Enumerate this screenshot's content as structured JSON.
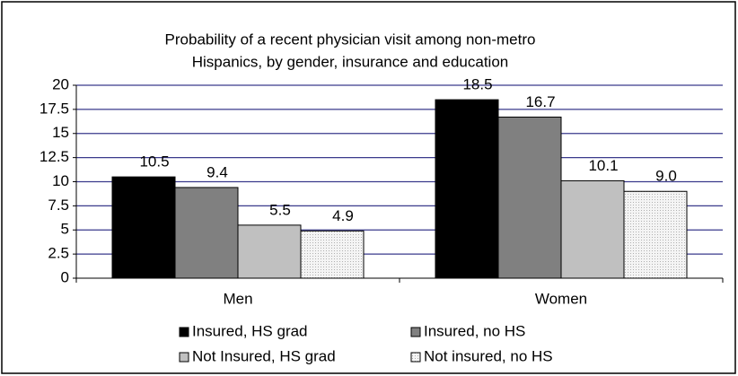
{
  "chart_data": {
    "type": "bar",
    "title": [
      "Probability of a recent physician visit among non-metro",
      "Hispanics, by gender, insurance and education"
    ],
    "categories": [
      "Men",
      "Women"
    ],
    "series": [
      {
        "name": "Insured, HS grad",
        "color": "#000000",
        "values": [
          10.5,
          18.5
        ],
        "value_labels": [
          "10.5",
          "18.5"
        ]
      },
      {
        "name": "Insured, no HS",
        "color": "#808080",
        "values": [
          9.4,
          16.7
        ],
        "value_labels": [
          "9.4",
          "16.7"
        ]
      },
      {
        "name": "Not Insured, HS grad",
        "color": "#c0c0c0",
        "values": [
          5.5,
          10.1
        ],
        "value_labels": [
          "5.5",
          "10.1"
        ]
      },
      {
        "name": "Not insured, no HS",
        "color": "#f2f2f2",
        "values": [
          4.9,
          9.0
        ],
        "value_labels": [
          "4.9",
          "9.0"
        ]
      }
    ],
    "ylim": [
      0,
      20
    ],
    "yticks": [
      0,
      2.5,
      5,
      7.5,
      10,
      12.5,
      15,
      17.5,
      20
    ],
    "grid": true,
    "grid_color": "#3a3a8c",
    "legend": "bottom"
  }
}
